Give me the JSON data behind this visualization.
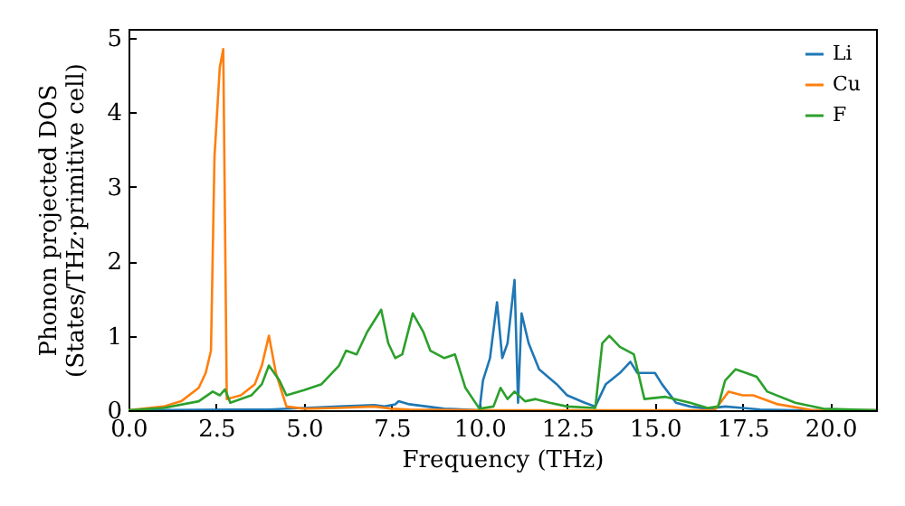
{
  "chart_data": {
    "type": "line",
    "xlabel": "Frequency (THz)",
    "ylabel": "Phonon projected DOS\n(States/THz·primitive cell)",
    "xlim": [
      0,
      21.3
    ],
    "ylim": [
      0,
      5.12
    ],
    "xticks": [
      {
        "value": 0,
        "label": "0.0"
      },
      {
        "value": 2.5,
        "label": "2.5"
      },
      {
        "value": 5,
        "label": "5.0"
      },
      {
        "value": 7.5,
        "label": "7.5"
      },
      {
        "value": 10,
        "label": "10.0"
      },
      {
        "value": 12.5,
        "label": "12.5"
      },
      {
        "value": 15,
        "label": "15.0"
      },
      {
        "value": 17.5,
        "label": "17.5"
      },
      {
        "value": 20,
        "label": "20.0"
      }
    ],
    "yticks": [
      0,
      1,
      2,
      3,
      4,
      5
    ],
    "grid": false,
    "legend": "top right",
    "line_style": "solid",
    "marker": "none",
    "series": [
      {
        "name": "Li",
        "color": "#1f77b4",
        "x": [
          0,
          4,
          5,
          6,
          7,
          7.3,
          7.6,
          7.7,
          8,
          8.5,
          9,
          10,
          10.1,
          10.3,
          10.5,
          10.65,
          10.8,
          11,
          11.1,
          11.2,
          11.4,
          11.7,
          12.2,
          12.5,
          13,
          13.3,
          13.6,
          14,
          14.3,
          14.5,
          15,
          15.2,
          15.6,
          16,
          16.5,
          17,
          17.5,
          18,
          19,
          21.3
        ],
        "values": [
          0,
          0.01,
          0.03,
          0.05,
          0.07,
          0.05,
          0.08,
          0.12,
          0.08,
          0.05,
          0.02,
          0,
          0.4,
          0.7,
          1.45,
          0.7,
          0.9,
          1.75,
          0.1,
          1.3,
          0.9,
          0.55,
          0.35,
          0.2,
          0.1,
          0.05,
          0.35,
          0.5,
          0.65,
          0.5,
          0.5,
          0.35,
          0.1,
          0.05,
          0.02,
          0.05,
          0.03,
          0.01,
          0,
          0
        ]
      },
      {
        "name": "Cu",
        "color": "#ff7f0e",
        "x": [
          0,
          1,
          1.5,
          2,
          2.2,
          2.35,
          2.45,
          2.6,
          2.7,
          2.8,
          3.2,
          3.6,
          3.8,
          4,
          4.2,
          4.5,
          5,
          6,
          7,
          7.5,
          8,
          10,
          16.7,
          17.1,
          17.5,
          17.8,
          18.5,
          19.5,
          21.3
        ],
        "values": [
          0,
          0.05,
          0.12,
          0.3,
          0.5,
          0.8,
          3.4,
          4.6,
          4.85,
          0.15,
          0.2,
          0.35,
          0.6,
          1.0,
          0.5,
          0.05,
          0.02,
          0.03,
          0.05,
          0.02,
          0.01,
          0,
          0,
          0.25,
          0.2,
          0.2,
          0.08,
          0,
          0
        ]
      },
      {
        "name": "F",
        "color": "#2ca02c",
        "x": [
          0,
          1,
          2,
          2.4,
          2.6,
          2.75,
          2.9,
          3.5,
          3.8,
          4,
          4.3,
          4.5,
          5,
          5.5,
          6,
          6.2,
          6.5,
          6.8,
          7.2,
          7.4,
          7.6,
          7.8,
          8.1,
          8.4,
          8.6,
          9,
          9.3,
          9.6,
          10,
          10.4,
          10.6,
          10.8,
          11,
          11.3,
          11.6,
          12,
          12.5,
          13.3,
          13.5,
          13.7,
          14,
          14.4,
          14.7,
          15.3,
          16,
          16.5,
          16.8,
          17,
          17.3,
          17.6,
          17.9,
          18.2,
          19,
          19.8,
          21.3
        ],
        "values": [
          0,
          0.03,
          0.12,
          0.25,
          0.2,
          0.28,
          0.1,
          0.2,
          0.35,
          0.6,
          0.4,
          0.2,
          0.27,
          0.35,
          0.6,
          0.8,
          0.75,
          1.05,
          1.35,
          0.9,
          0.7,
          0.75,
          1.3,
          1.05,
          0.8,
          0.7,
          0.75,
          0.3,
          0.02,
          0.05,
          0.3,
          0.15,
          0.25,
          0.12,
          0.15,
          0.1,
          0.05,
          0.03,
          0.9,
          1.0,
          0.85,
          0.75,
          0.15,
          0.18,
          0.1,
          0.03,
          0.05,
          0.4,
          0.55,
          0.5,
          0.45,
          0.25,
          0.1,
          0.02,
          0
        ]
      }
    ]
  }
}
